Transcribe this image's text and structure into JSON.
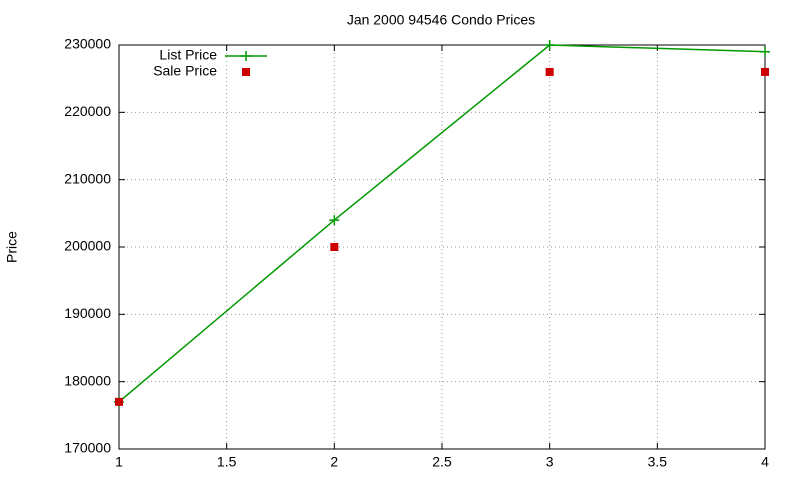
{
  "chart_data": {
    "type": "line",
    "title": "Jan 2000 94546 Condo Prices",
    "y_label": "Price",
    "x": [
      1,
      2,
      3,
      4
    ],
    "series": [
      {
        "name": "List Price",
        "color": "#009900",
        "style": "linespoints",
        "marker": "plus",
        "values": [
          177000,
          204000,
          230000,
          229000
        ]
      },
      {
        "name": "Sale Price",
        "color": "#cc0000",
        "style": "points",
        "marker": "square",
        "values": [
          177000,
          200000,
          226000,
          226000
        ]
      }
    ],
    "xlim": [
      1,
      4
    ],
    "xticks": [
      1,
      1.5,
      2,
      2.5,
      3,
      3.5,
      4
    ],
    "ylim": [
      170000,
      230000
    ],
    "yticks": [
      170000,
      180000,
      190000,
      200000,
      210000,
      220000,
      230000
    ],
    "grid": true,
    "legend": "top-left"
  }
}
